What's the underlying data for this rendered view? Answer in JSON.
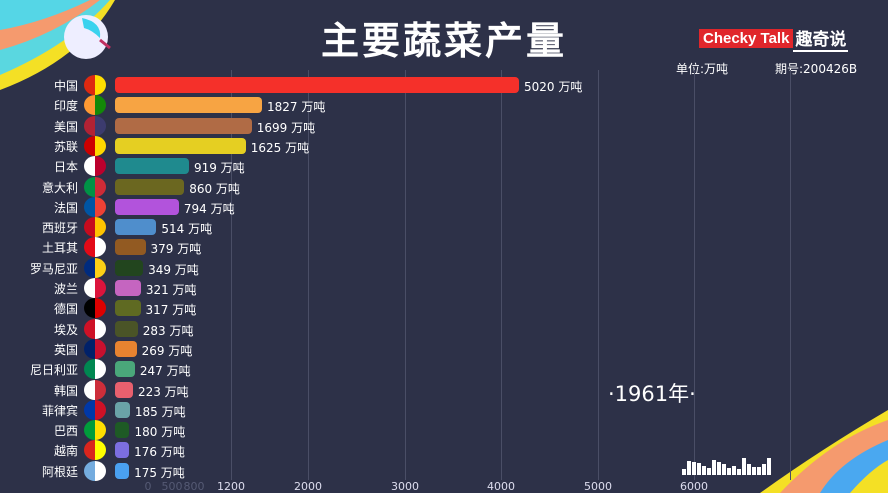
{
  "title": "主要蔬菜产量",
  "brand": {
    "en": "Checky Talk",
    "cn": "趣奇说"
  },
  "unit": "单位:万吨",
  "issue": "期号:200426B",
  "year": "·1961年·",
  "chart_data": {
    "type": "bar",
    "orientation": "horizontal",
    "title": "主要蔬菜产量",
    "unit_suffix": "万吨",
    "categories": [
      "中国",
      "印度",
      "美国",
      "苏联",
      "日本",
      "意大利",
      "法国",
      "西班牙",
      "土耳其",
      "罗马尼亚",
      "波兰",
      "德国",
      "埃及",
      "英国",
      "尼日利亚",
      "韩国",
      "菲律宾",
      "巴西",
      "越南",
      "阿根廷"
    ],
    "values": [
      5020,
      1827,
      1699,
      1625,
      919,
      860,
      794,
      514,
      379,
      349,
      321,
      317,
      283,
      269,
      247,
      223,
      185,
      180,
      176,
      175
    ],
    "labels": [
      "5020 万吨",
      "1827 万吨",
      "1699 万吨",
      "1625 万吨",
      "919 万吨",
      "860 万吨",
      "794 万吨",
      "514 万吨",
      "379 万吨",
      "349 万吨",
      "321 万吨",
      "317 万吨",
      "283 万吨",
      "269 万吨",
      "247 万吨",
      "223 万吨",
      "185 万吨",
      "180 万吨",
      "176 万吨",
      "175 万吨"
    ],
    "colors": [
      "#f5302a",
      "#f7a443",
      "#b06b45",
      "#e5cf22",
      "#1f8a8e",
      "#6b6720",
      "#b253dc",
      "#4f8ecc",
      "#925a22",
      "#22451e",
      "#c565c0",
      "#5f6a22",
      "#4a5427",
      "#e88330",
      "#4aa77a",
      "#e8606e",
      "#6aa3a8",
      "#1e5a25",
      "#7c6ee0",
      "#4aa0f0"
    ],
    "flags": [
      [
        "#de2910",
        "#ffde00"
      ],
      [
        "#ff9933",
        "#138808"
      ],
      [
        "#b22234",
        "#3c3b6e"
      ],
      [
        "#cc0000",
        "#ffd700"
      ],
      [
        "#ffffff",
        "#bc002d"
      ],
      [
        "#009246",
        "#ce2b37"
      ],
      [
        "#0055a4",
        "#ef4135"
      ],
      [
        "#c60b1e",
        "#ffc400"
      ],
      [
        "#e30a17",
        "#ffffff"
      ],
      [
        "#002b7f",
        "#fcd116"
      ],
      [
        "#ffffff",
        "#dc143c"
      ],
      [
        "#000000",
        "#dd0000"
      ],
      [
        "#ce1126",
        "#ffffff"
      ],
      [
        "#012169",
        "#c8102e"
      ],
      [
        "#008751",
        "#ffffff"
      ],
      [
        "#ffffff",
        "#cd2e3a"
      ],
      [
        "#0038a8",
        "#ce1126"
      ],
      [
        "#009c3b",
        "#ffdf00"
      ],
      [
        "#da251d",
        "#ffff00"
      ],
      [
        "#74acdf",
        "#ffffff"
      ]
    ],
    "xticks": [
      "1200",
      "2000",
      "3000",
      "4000",
      "5000",
      "6000"
    ],
    "xticks_faded": [
      "0",
      "500",
      "800"
    ],
    "grid": true
  }
}
